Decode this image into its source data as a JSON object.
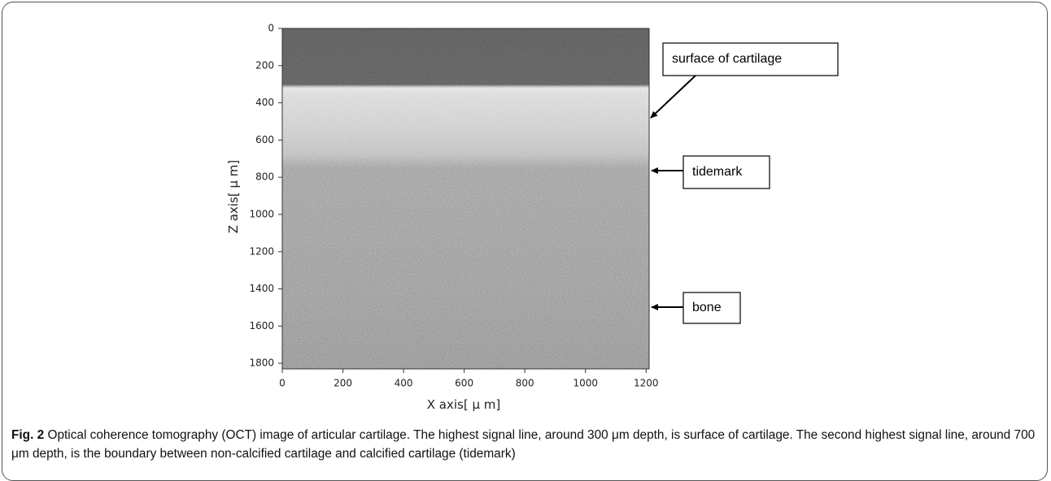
{
  "chart_data": {
    "type": "image",
    "xlabel": "X axis[ μ m]",
    "ylabel": "Z axis[ μ m]",
    "xlim": [
      0,
      1210
    ],
    "ylim": [
      0,
      1830
    ],
    "xticks": [
      0,
      200,
      400,
      600,
      800,
      1000,
      1200
    ],
    "yticks": [
      0,
      200,
      400,
      600,
      800,
      1000,
      1200,
      1400,
      1600,
      1800
    ],
    "annotations": [
      "surface of cartilage",
      "tidemark",
      "bone"
    ]
  },
  "caption": {
    "label": "Fig. 2",
    "text": " Optical coherence tomography (OCT) image of articular cartilage. The highest signal line, around 300 μm depth, is surface of cartilage. The second highest signal line, around 700 μm depth, is the boundary between non-calcified cartilage and calcified cartilage (tidemark)"
  }
}
